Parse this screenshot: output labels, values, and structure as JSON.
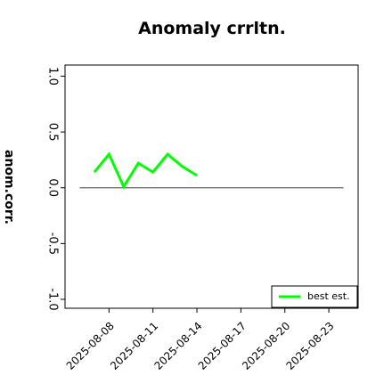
{
  "chart_data": {
    "type": "line",
    "title": "Anomaly crrltn.",
    "ylabel": "anom.corr.",
    "x": [
      "2025-08-07",
      "2025-08-08",
      "2025-08-09",
      "2025-08-10",
      "2025-08-11",
      "2025-08-12",
      "2025-08-13",
      "2025-08-14"
    ],
    "series": [
      {
        "name": "best est.",
        "color": "#00ff00",
        "values": [
          0.14,
          0.3,
          0.01,
          0.22,
          0.14,
          0.3,
          0.19,
          0.11
        ]
      }
    ],
    "xlim": [
      "2025-08-05",
      "2025-08-25"
    ],
    "xticks": [
      "2025-08-08",
      "2025-08-11",
      "2025-08-14",
      "2025-08-17",
      "2025-08-20",
      "2025-08-23"
    ],
    "highlighted_xtick": "2025-08-14",
    "highlight_color": "#228b22",
    "ylim": [
      -1.08,
      1.1
    ],
    "yticks": [
      {
        "value": -1,
        "label": "-1.0"
      },
      {
        "value": -0.5,
        "label": "-0.5"
      },
      {
        "value": 0,
        "label": "0.0"
      },
      {
        "value": 0.5,
        "label": "0.5"
      },
      {
        "value": 1,
        "label": "1.0"
      }
    ],
    "reference_line": {
      "y": 0,
      "x": [
        "2025-08-06",
        "2025-08-24"
      ],
      "color": "#666666"
    },
    "legend": "lower right"
  }
}
